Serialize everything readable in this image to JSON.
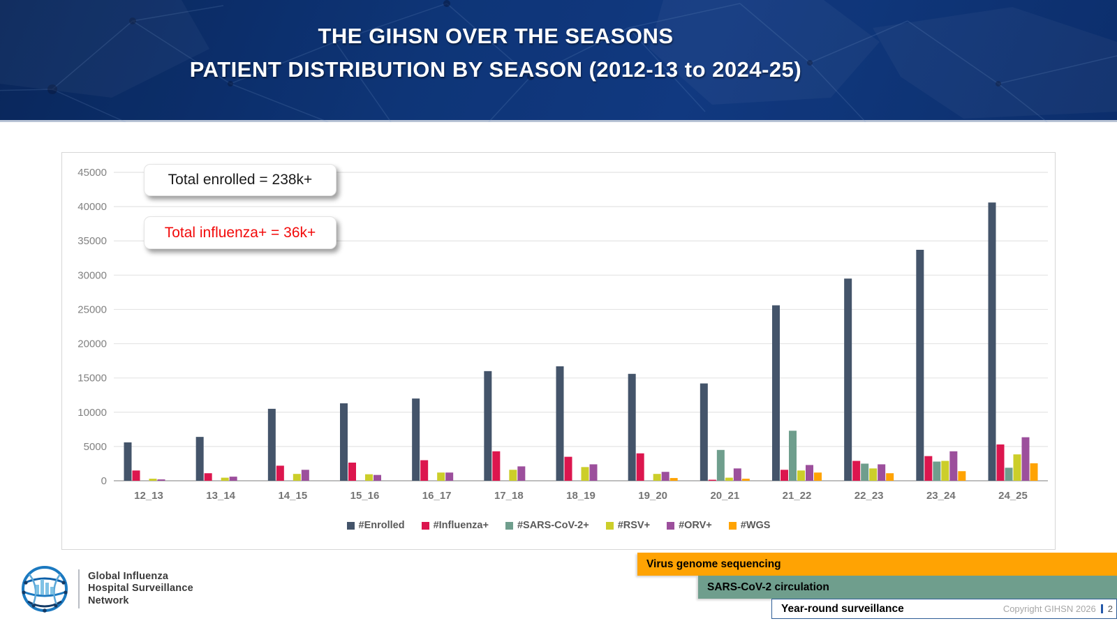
{
  "header": {
    "title_line1": "THE GIHSN OVER THE SEASONS",
    "title_line2": "PATIENT DISTRIBUTION BY SEASON (2012-13 to 2024-25)"
  },
  "chart_data": {
    "type": "bar",
    "title": "Patient distribution by season",
    "categories": [
      "12_13",
      "13_14",
      "14_15",
      "15_16",
      "16_17",
      "17_18",
      "18_19",
      "19_20",
      "20_21",
      "21_22",
      "22_23",
      "23_24",
      "24_25"
    ],
    "series": [
      {
        "name": "#Enrolled",
        "color": "#44546A",
        "values": [
          5600,
          6400,
          10500,
          11300,
          12000,
          16000,
          16700,
          15600,
          14200,
          25600,
          29500,
          33700,
          40600
        ]
      },
      {
        "name": "#Influenza+",
        "color": "#DC164E",
        "values": [
          1500,
          1100,
          2200,
          2650,
          3000,
          4300,
          3500,
          4000,
          150,
          1600,
          2900,
          3600,
          5300
        ]
      },
      {
        "name": "#SARS-CoV-2+",
        "color": "#6F9E8D",
        "values": [
          null,
          null,
          null,
          null,
          null,
          null,
          null,
          null,
          4500,
          7300,
          2500,
          2800,
          1900
        ]
      },
      {
        "name": "#RSV+",
        "color": "#CCCE2A",
        "values": [
          300,
          450,
          1000,
          950,
          1200,
          1600,
          2000,
          1000,
          450,
          1500,
          1800,
          2900,
          3850
        ]
      },
      {
        "name": "#ORV+",
        "color": "#9C4F9C",
        "values": [
          200,
          600,
          1600,
          850,
          1200,
          2100,
          2400,
          1300,
          1800,
          2300,
          2400,
          4300,
          6350
        ]
      },
      {
        "name": "#WGS",
        "color": "#FFA303",
        "values": [
          null,
          null,
          null,
          null,
          null,
          null,
          null,
          400,
          300,
          1200,
          1100,
          1400,
          2550
        ]
      }
    ],
    "xlabel": "",
    "ylabel": "",
    "ylim": [
      0,
      45000
    ],
    "ytick_step": 5000,
    "grid": true,
    "legend_position": "bottom",
    "callouts": [
      {
        "text": "Total enrolled = 238k+",
        "color": "#1a1a1a"
      },
      {
        "text": "Total influenza+ = 36k+",
        "color": "#F20A0A"
      }
    ]
  },
  "footer": {
    "logo_lines": [
      "Global Influenza",
      "Hospital Surveillance",
      "Network"
    ],
    "banners": [
      {
        "label": "Virus genome sequencing",
        "color": "#FFA303",
        "text_color": "#000000"
      },
      {
        "label": "SARS-CoV-2 circulation",
        "color": "#6F9E8D",
        "text_color": "#000000"
      },
      {
        "label": "Year-round surveillance",
        "color": "#FFFFFF",
        "text_color": "#000000"
      }
    ],
    "copyright": "Copyright GIHSN 2026",
    "page_number": "2"
  }
}
